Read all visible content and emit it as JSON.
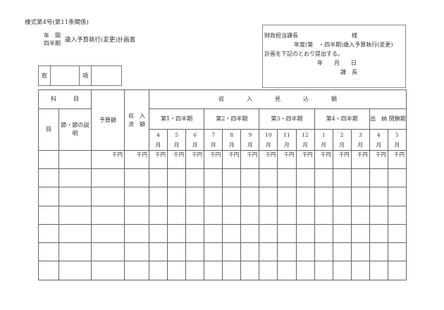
{
  "form_number": "様式第4号(第11条関係)",
  "title_prefix": [
    "年　間",
    "四半期"
  ],
  "title": "歳入予算執行(変更)計画書",
  "kan_box": {
    "kan": "款",
    "kou": "項"
  },
  "address_block": {
    "recipient": "財政担当課長",
    "honorific": "様",
    "line2": "年度(第　・四半期)歳入予算執行(変更)",
    "line3": "計画を下記のとおり提出する。",
    "date": "年　　月　　日",
    "sender": "課　長"
  },
  "table": {
    "kamoku": "科　　　目",
    "shunyu_mikomi": "収　　　　入　　　　見　　　　込　　　　額",
    "moku": "目",
    "setsu": "節・節の説明",
    "yosangaku": "予算額",
    "shunyu_zumi": "収　入 済　額",
    "quarters": [
      "第1・四半期",
      "第2・四半期",
      "第3・四半期",
      "第4・四半期",
      "出　納 閉鎖期"
    ],
    "months": [
      "4",
      "5",
      "6",
      "7",
      "8",
      "9",
      "10",
      "11",
      "12",
      "1",
      "2",
      "3",
      "4",
      "5"
    ],
    "month_suffix": "月",
    "unit": "千円",
    "data_rows": 6
  }
}
